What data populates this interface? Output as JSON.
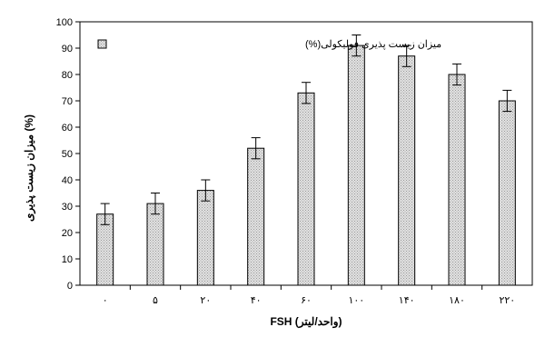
{
  "chart_data": {
    "type": "bar",
    "categories": [
      "۰",
      "۵",
      "۲۰",
      "۴۰",
      "۶۰",
      "۱۰۰",
      "۱۴۰",
      "۱۸۰",
      "۲۲۰"
    ],
    "series": [
      {
        "name": "میزان زیست پذیری فولیکولی(%)",
        "values": [
          27,
          31,
          36,
          52,
          73,
          91,
          87,
          80,
          70
        ],
        "errors": [
          4,
          4,
          4,
          4,
          4,
          4,
          4,
          4,
          4
        ]
      }
    ],
    "ylim": [
      0,
      100
    ],
    "yticks": [
      0,
      10,
      20,
      30,
      40,
      50,
      60,
      70,
      80,
      90,
      100
    ],
    "xlabel": "FSH (واحد/لیتر)",
    "ylabel": "میزان زیست پذیری (%)",
    "legend_position": "top-left",
    "grid": false,
    "colors": {
      "bar_fill": "#d4d4d4",
      "bar_stroke": "#000000",
      "axis": "#000000"
    }
  }
}
